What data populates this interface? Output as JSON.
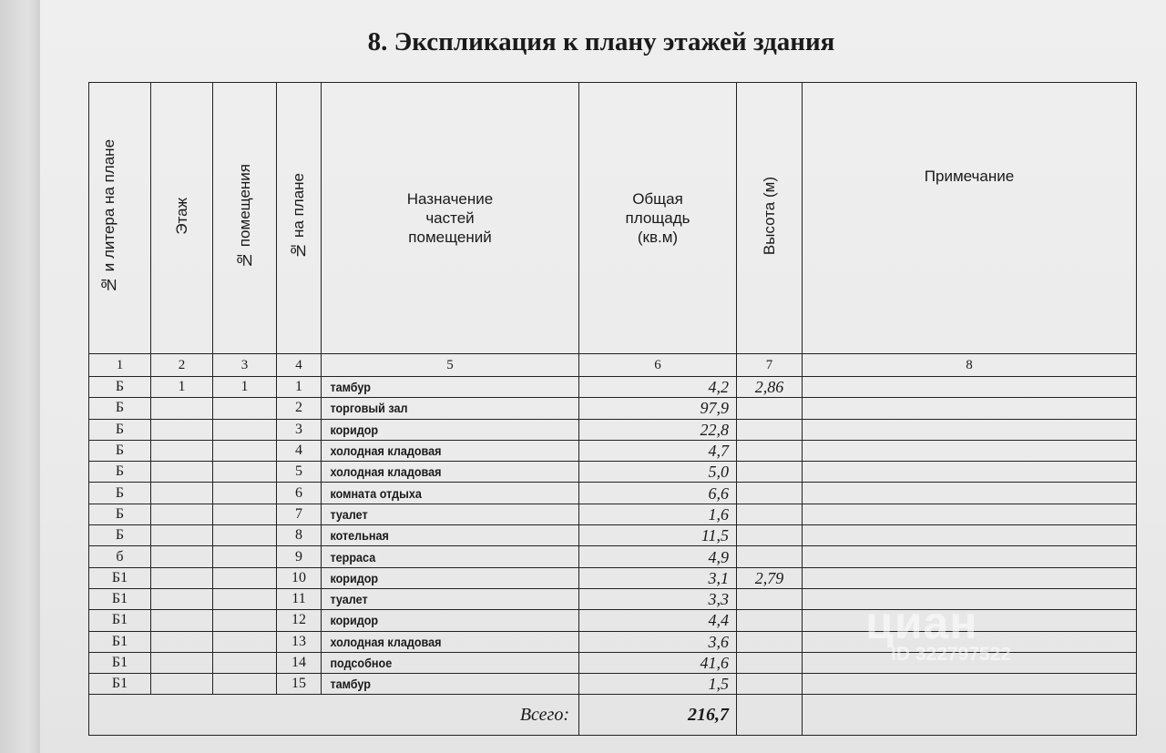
{
  "title": "8. Экспликация к плану этажей здания",
  "headers": [
    "№ и литера на плане",
    "Этаж",
    "№ помещения",
    "№ на плане",
    "Назначение частей помещений",
    "Общая площадь (кв.м)",
    "Высота (м)",
    "Примечание"
  ],
  "column_numbers": [
    "1",
    "2",
    "3",
    "4",
    "5",
    "6",
    "7",
    "8"
  ],
  "rows": [
    {
      "litera": "Б",
      "floor": "1",
      "room": "1",
      "num": "1",
      "name": "тамбур",
      "area": "4,2",
      "height": "2,86",
      "note": ""
    },
    {
      "litera": "Б",
      "floor": "",
      "room": "",
      "num": "2",
      "name": "торговый зал",
      "area": "97,9",
      "height": "",
      "note": ""
    },
    {
      "litera": "Б",
      "floor": "",
      "room": "",
      "num": "3",
      "name": "коридор",
      "area": "22,8",
      "height": "",
      "note": ""
    },
    {
      "litera": "Б",
      "floor": "",
      "room": "",
      "num": "4",
      "name": "холодная кладовая",
      "area": "4,7",
      "height": "",
      "note": ""
    },
    {
      "litera": "Б",
      "floor": "",
      "room": "",
      "num": "5",
      "name": "холодная кладовая",
      "area": "5,0",
      "height": "",
      "note": ""
    },
    {
      "litera": "Б",
      "floor": "",
      "room": "",
      "num": "6",
      "name": "комната отдыха",
      "area": "6,6",
      "height": "",
      "note": ""
    },
    {
      "litera": "Б",
      "floor": "",
      "room": "",
      "num": "7",
      "name": "туалет",
      "area": "1,6",
      "height": "",
      "note": ""
    },
    {
      "litera": "Б",
      "floor": "",
      "room": "",
      "num": "8",
      "name": "котельная",
      "area": "11,5",
      "height": "",
      "note": ""
    },
    {
      "litera": "б",
      "floor": "",
      "room": "",
      "num": "9",
      "name": "терраса",
      "area": "4,9",
      "height": "",
      "note": ""
    },
    {
      "litera": "Б1",
      "floor": "",
      "room": "",
      "num": "10",
      "name": "коридор",
      "area": "3,1",
      "height": "2,79",
      "note": ""
    },
    {
      "litera": "Б1",
      "floor": "",
      "room": "",
      "num": "11",
      "name": "туалет",
      "area": "3,3",
      "height": "",
      "note": ""
    },
    {
      "litera": "Б1",
      "floor": "",
      "room": "",
      "num": "12",
      "name": "коридор",
      "area": "4,4",
      "height": "",
      "note": ""
    },
    {
      "litera": "Б1",
      "floor": "",
      "room": "",
      "num": "13",
      "name": "холодная кладовая",
      "area": "3,6",
      "height": "",
      "note": ""
    },
    {
      "litera": "Б1",
      "floor": "",
      "room": "",
      "num": "14",
      "name": "подсобное",
      "area": "41,6",
      "height": "",
      "note": ""
    },
    {
      "litera": "Б1",
      "floor": "",
      "room": "",
      "num": "15",
      "name": "тамбур",
      "area": "1,5",
      "height": "",
      "note": ""
    }
  ],
  "total": {
    "label": "Всего:",
    "area": "216,7"
  },
  "watermark": {
    "logo": "циан",
    "id": "ID 322797522"
  }
}
